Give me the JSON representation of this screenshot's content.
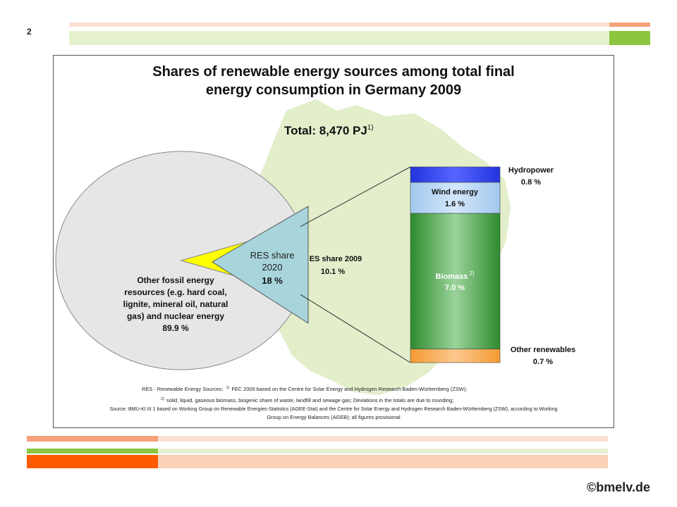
{
  "page_number": "2",
  "brand": "©bmelv.de",
  "colors": {
    "other_fossil": "#e6e6e6",
    "res_2009": "#ffff00",
    "res_2020": "#a8d4dc",
    "hydropower": "#3344ee",
    "wind": "#a9d0f3",
    "biomass": "#3f9e3f",
    "other_renewables": "#f7a03a",
    "header_orange": "#f5a27a",
    "header_green": "#8cc63f",
    "germany": "#e3eecb"
  },
  "chart_data": {
    "type": "pie",
    "title": "Shares of renewable energy sources among total final energy consumption in Germany 2009",
    "title_line1": "Shares of renewable energy sources among total final",
    "title_line2": "energy consumption in Germany 2009",
    "total_label": "Total: 8,470 PJ",
    "total_superscript": "1)",
    "unit": "%",
    "pie": {
      "slices": [
        {
          "label": "Other fossil energy resources (e.g. hard coal, lignite, mineral oil, natural gas) and nuclear energy",
          "value": 89.9,
          "lines": [
            "Other fossil energy",
            "resources (e.g. hard coal,",
            "lignite, mineral oil, natural",
            "gas) and nuclear energy"
          ],
          "value_label": "89.9 %"
        },
        {
          "label": "RES share 2009",
          "value": 10.1,
          "display_label": "ES share 2009",
          "value_label": "10.1 %"
        }
      ]
    },
    "res_2020": {
      "line1": "RES share",
      "line2": "2020",
      "value": 18,
      "value_label": "18 %"
    },
    "stacked_bar": {
      "segments": [
        {
          "name": "Hydropower",
          "value": 0.8,
          "value_label": "0.8 %"
        },
        {
          "name": "Wind energy",
          "value": 1.6,
          "value_label": "1.6 %"
        },
        {
          "name": "Biomass",
          "superscript": "2)",
          "value": 7.0,
          "value_label": "7.0 %"
        },
        {
          "name": "Other renewables",
          "value": 0.7,
          "value_label": "0.7 %"
        }
      ]
    },
    "footnotes": {
      "line1_a": "RES - Renewable Energy Sources;",
      "line1_sup": "1)",
      "line1_b": "FEC 2009 based on the Centre for Solar Energy and Hydrogen Research Baden-Württemberg (ZSW);",
      "line2_sup": "2)",
      "line2": "solid, liquid, gaseous biomass, biogenic share of waste, landfill and sewage gas; Deviations in the totals are due to rounding;",
      "line3": "Source: BMU-KI III 1 based on Working Group on Renewable Energies-Statistics (AGEE-Stat) and the Centre for Solar Energy and Hydrogen Research Baden-Württemberg (ZSW), according to Working",
      "line4": "Group on Energy Balances (AGEB); all figures provisional"
    }
  }
}
